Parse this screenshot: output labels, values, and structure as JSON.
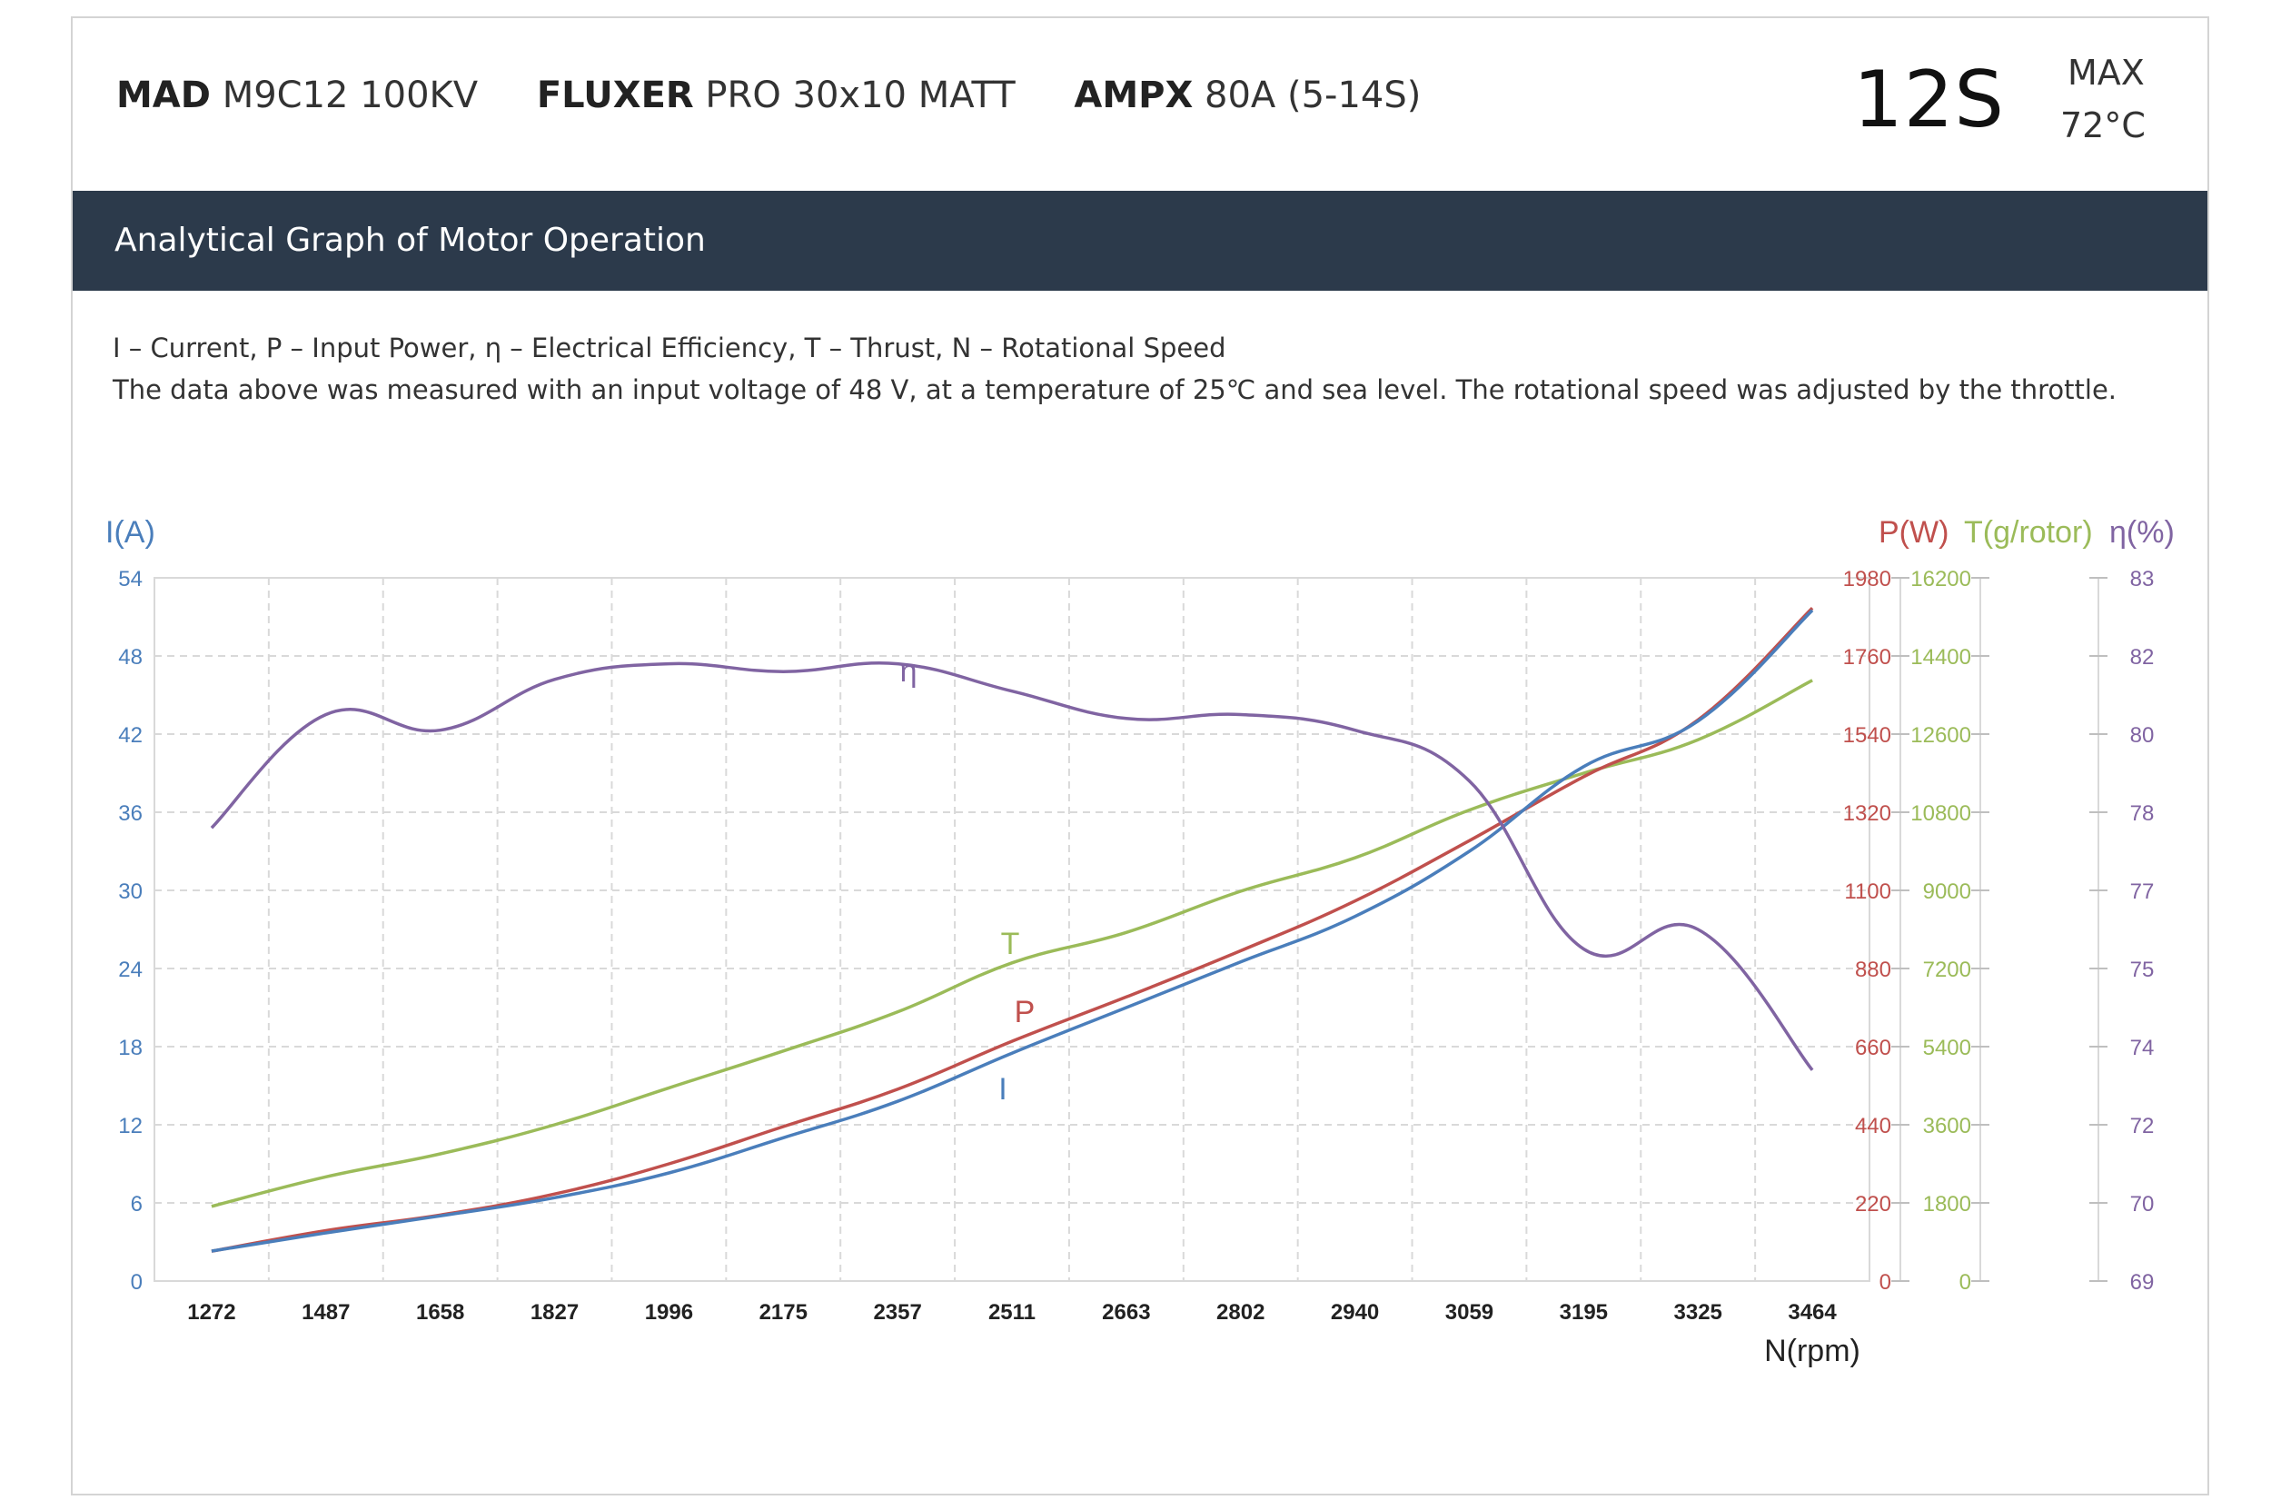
{
  "header": {
    "specs": [
      {
        "brand": "MAD",
        "model": "M9C12 100KV"
      },
      {
        "brand": "FLUXER",
        "model": "PRO 30x10 MATT"
      },
      {
        "brand": "AMPX",
        "model": "80A (5-14S)"
      }
    ],
    "cells": "12S",
    "max_label": "MAX",
    "max_value": "72°C"
  },
  "banner": {
    "title": "Analytical Graph of Motor Operation"
  },
  "description": {
    "line1": "I – Current, P – Input Power, η – Electrical Efficiency, T – Thrust,   N – Rotational Speed",
    "line2": "The data above was measured with an input voltage of   48 V, at a temperature of 25℃ and sea level. The rotational speed was adjusted by the throttle."
  },
  "colors": {
    "current": "#4a7ebb",
    "power": "#c0504d",
    "thrust": "#9bbb59",
    "efficiency": "#8064a2",
    "grid": "#d9d9d9",
    "banner": "#2c3a4b"
  },
  "chart_data": {
    "type": "line",
    "x_label": "N(rpm)",
    "categories": [
      "1272",
      "1487",
      "1658",
      "1827",
      "1996",
      "2175",
      "2357",
      "2511",
      "2663",
      "2802",
      "2940",
      "3059",
      "3195",
      "3325",
      "3464"
    ],
    "grid": true,
    "axes": {
      "left": {
        "label": "I(A)",
        "min": 0,
        "max": 54,
        "ticks": [
          "0",
          "6",
          "12",
          "18",
          "24",
          "30",
          "36",
          "42",
          "48",
          "54"
        ],
        "color": "#4a7ebb"
      },
      "right_power": {
        "label": "P(W)",
        "min": 0,
        "max": 1980,
        "ticks": [
          "0",
          "220",
          "440",
          "660",
          "880",
          "1100",
          "1320",
          "1540",
          "1760",
          "1980"
        ],
        "color": "#c0504d"
      },
      "right_thrust": {
        "label": "T(g/rotor)",
        "min": 0,
        "max": 16200,
        "ticks": [
          "0",
          "1800",
          "3600",
          "5400",
          "7200",
          "9000",
          "10800",
          "12600",
          "14400",
          "16200"
        ],
        "color": "#9bbb59"
      },
      "right_eff": {
        "label": "η(%)",
        "ticks": [
          "69",
          "70",
          "72",
          "74",
          "75",
          "77",
          "78",
          "80",
          "82",
          "83"
        ],
        "color": "#8064a2"
      }
    },
    "series": [
      {
        "name": "I",
        "axis": "left",
        "values": [
          2.3,
          3.7,
          5.0,
          6.4,
          8.3,
          11.0,
          13.8,
          17.5,
          21.0,
          24.5,
          28.0,
          33.0,
          39.5,
          43.0,
          51.5
        ]
      },
      {
        "name": "P",
        "axis": "right_power",
        "values": [
          84,
          142,
          186,
          245,
          330,
          435,
          540,
          675,
          800,
          930,
          1070,
          1240,
          1420,
          1580,
          1895
        ]
      },
      {
        "name": "T",
        "axis": "right_thrust",
        "values": [
          1720,
          2400,
          2930,
          3600,
          4450,
          5300,
          6200,
          7330,
          8030,
          8980,
          9750,
          10850,
          11700,
          12470,
          13840
        ]
      },
      {
        "name": "η",
        "axis": "right_eff",
        "values": [
          77.8,
          80.5,
          80.1,
          81.4,
          81.8,
          81.6,
          81.8,
          81.1,
          80.4,
          80.5,
          80.1,
          78.8,
          75.5,
          76.0,
          73.4
        ]
      }
    ]
  }
}
